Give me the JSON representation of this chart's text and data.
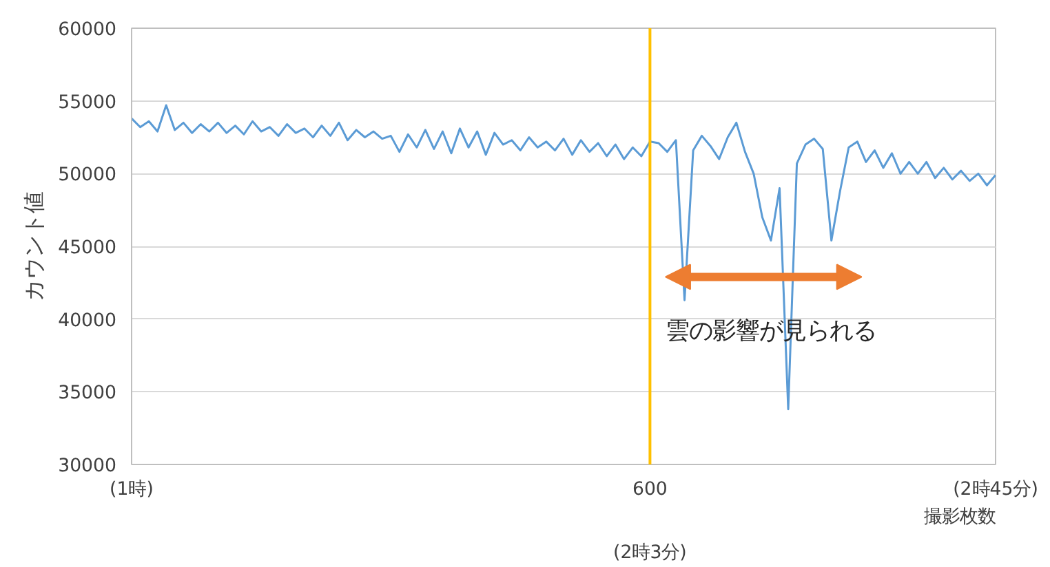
{
  "chart_data": {
    "type": "line",
    "ylabel": "カウント値",
    "xlabel": "撮影枚数",
    "ylim": [
      30000,
      60000
    ],
    "yticks": [
      30000,
      35000,
      40000,
      45000,
      50000,
      55000,
      60000
    ],
    "grid": "y",
    "marker": "none",
    "line_style": "solid",
    "categories": [
      "(1時)",
      null,
      null,
      null,
      null,
      null,
      null,
      null,
      null,
      null,
      null,
      null,
      null,
      null,
      null,
      null,
      null,
      null,
      null,
      null,
      null,
      null,
      null,
      null,
      null,
      null,
      null,
      null,
      null,
      null,
      null,
      null,
      null,
      null,
      null,
      null,
      null,
      null,
      null,
      null,
      null,
      null,
      null,
      null,
      null,
      null,
      null,
      null,
      null,
      null,
      null,
      null,
      null,
      null,
      null,
      null,
      null,
      null,
      null,
      null,
      "600",
      null,
      null,
      null,
      null,
      null,
      null,
      null,
      null,
      null,
      null,
      null,
      null,
      null,
      null,
      null,
      null,
      null,
      null,
      null,
      null,
      null,
      null,
      null,
      null,
      null,
      null,
      null,
      null,
      null,
      null,
      null,
      null,
      null,
      null,
      null,
      null,
      null,
      null,
      null,
      "(2時45分)"
    ],
    "ref_lines": [
      {
        "axis": "x",
        "value": "600",
        "color": "#ffc000",
        "line_style": "solid"
      }
    ],
    "annotations": [
      "雲の影響が見られる",
      "(2時3分)"
    ],
    "series": [
      {
        "color": "#5b9bd5",
        "values": [
          53800,
          53200,
          53600,
          52900,
          54700,
          53000,
          53500,
          52800,
          53400,
          52900,
          53500,
          52800,
          53300,
          52700,
          53600,
          52900,
          53200,
          52600,
          53400,
          52800,
          53100,
          52500,
          53300,
          52600,
          53500,
          52300,
          53000,
          52500,
          52900,
          52400,
          52600,
          51500,
          52700,
          51800,
          53000,
          51700,
          52900,
          51400,
          53100,
          51800,
          52900,
          51300,
          52800,
          52000,
          52300,
          51600,
          52500,
          51800,
          52200,
          51600,
          52400,
          51300,
          52300,
          51500,
          52100,
          51200,
          52000,
          51000,
          51800,
          51200,
          52200,
          52100,
          51500,
          52300,
          41300,
          51600,
          52600,
          51900,
          51000,
          52500,
          53500,
          51500,
          50000,
          47000,
          45400,
          49000,
          33800,
          50700,
          52000,
          52400,
          51700,
          45400,
          48800,
          51800,
          52200,
          50800,
          51600,
          50400,
          51400,
          50000,
          50800,
          50000,
          50800,
          49700,
          50400,
          49600,
          50200,
          49500,
          50000,
          49200,
          49900
        ]
      }
    ]
  }
}
